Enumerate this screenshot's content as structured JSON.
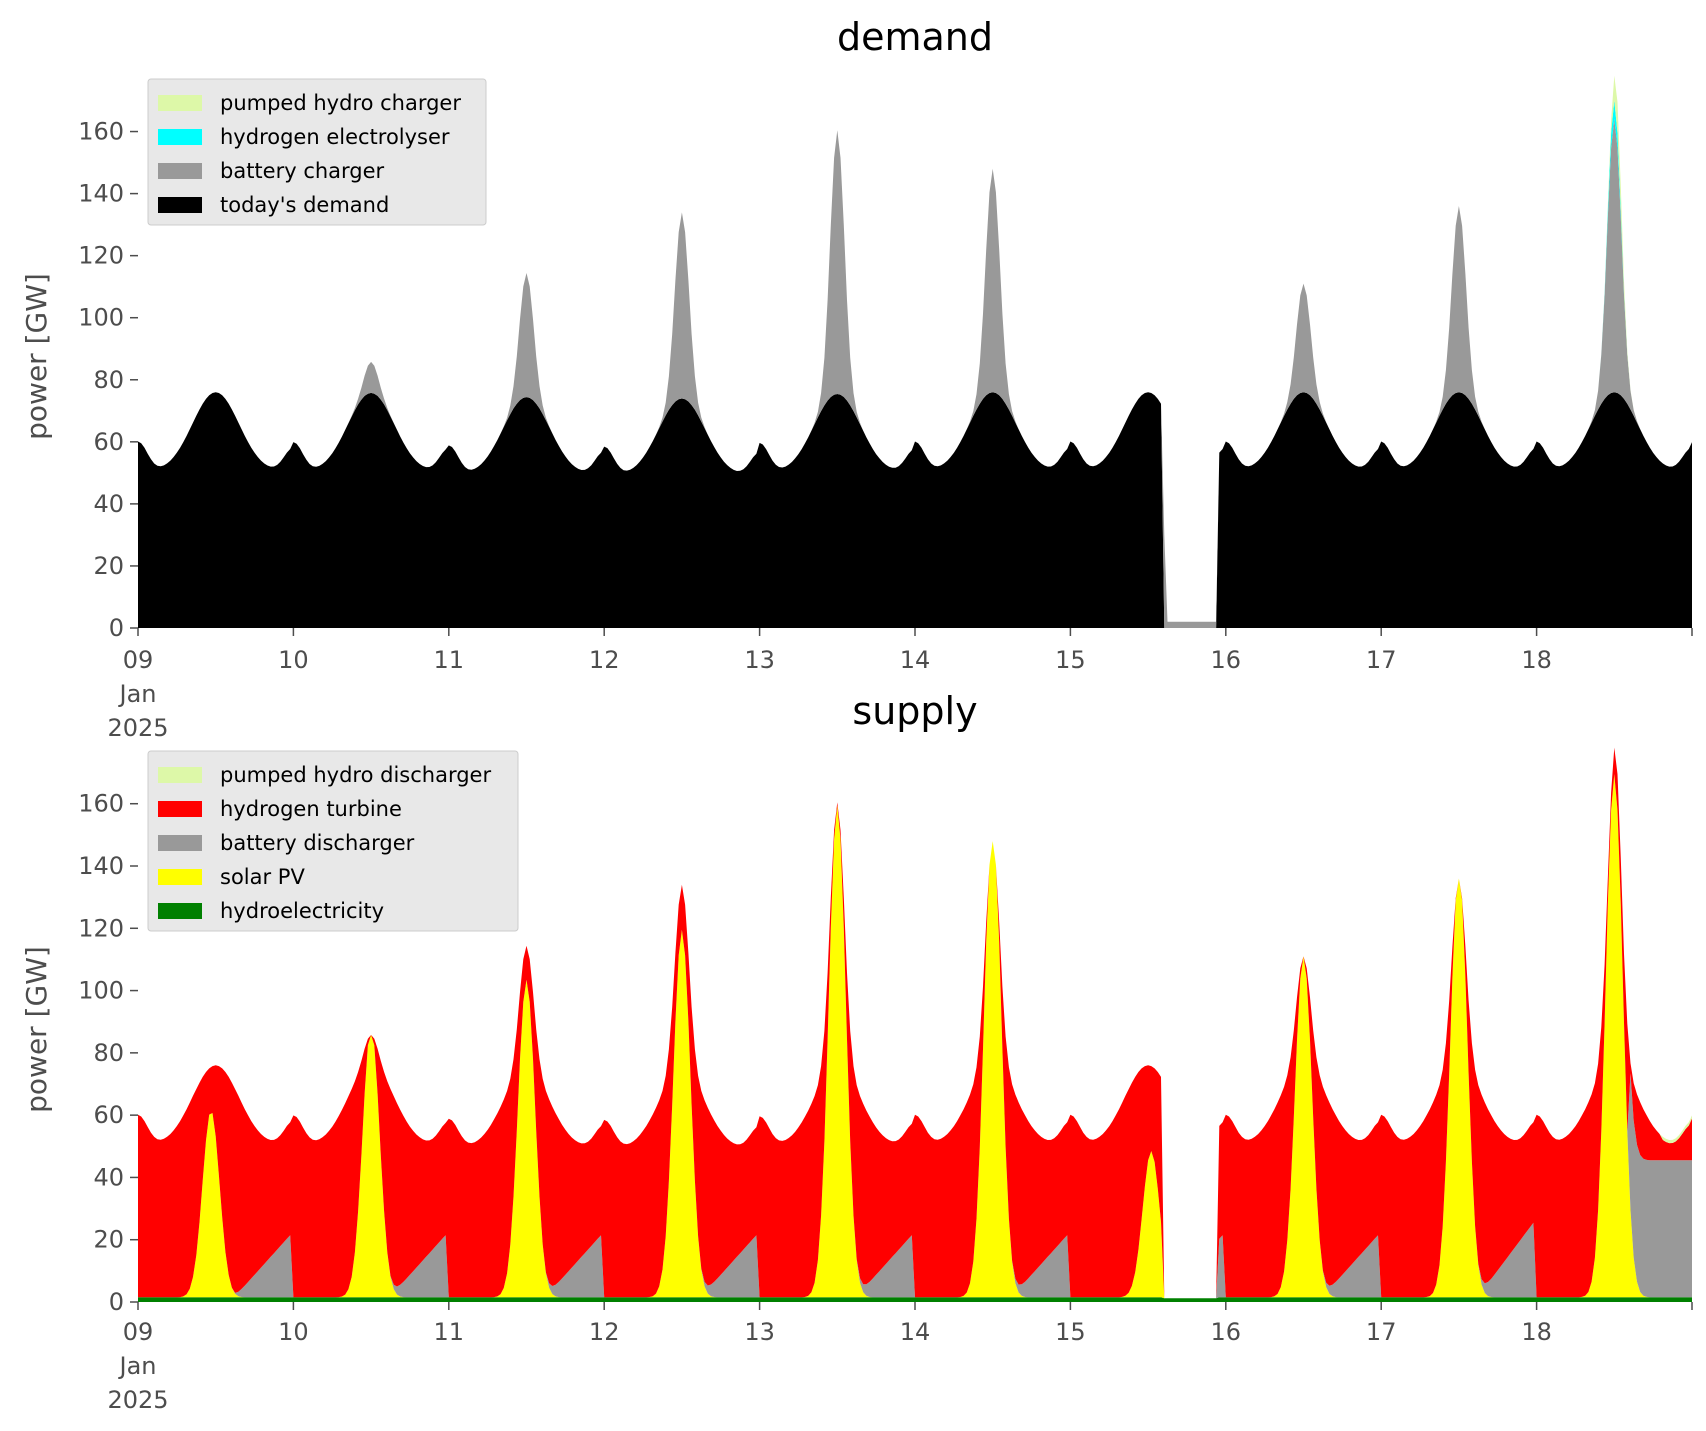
{
  "chart_data": [
    {
      "type": "area",
      "title": "demand",
      "ylabel": "power [GW]",
      "xlabel": "",
      "ylim": [
        0,
        175
      ],
      "yticks": [
        "0",
        "20",
        "40",
        "60",
        "80",
        "100",
        "120",
        "140",
        "160"
      ],
      "ytick_values": [
        0,
        20,
        40,
        60,
        80,
        100,
        120,
        140,
        160
      ],
      "x_tick_labels": [
        "09\nJan\n2025",
        "10",
        "11",
        "12",
        "13",
        "14",
        "15",
        "16",
        "17",
        "18"
      ],
      "x_tick_days": [
        9,
        10,
        11,
        12,
        13,
        14,
        15,
        16,
        17,
        18
      ],
      "x_range_days": [
        9,
        19
      ],
      "legend_position": "upper-left",
      "legend": [
        "pumped hydro charger",
        "hydrogen electrolyser",
        "battery charger",
        "today's demand"
      ],
      "series": [
        {
          "name": "today's demand",
          "color": "#000000"
        },
        {
          "name": "battery charger",
          "color": "#999999"
        },
        {
          "name": "hydrogen electrolyser",
          "color": "#00ffff"
        },
        {
          "name": "pumped hydro charger",
          "color": "#ddf8a8"
        }
      ],
      "grid": false
    },
    {
      "type": "area",
      "title": "supply",
      "ylabel": "power [GW]",
      "xlabel": "",
      "ylim": [
        0,
        175
      ],
      "yticks": [
        "0",
        "20",
        "40",
        "60",
        "80",
        "100",
        "120",
        "140",
        "160"
      ],
      "ytick_values": [
        0,
        20,
        40,
        60,
        80,
        100,
        120,
        140,
        160
      ],
      "x_tick_labels": [
        "09\nJan\n2025",
        "10",
        "11",
        "12",
        "13",
        "14",
        "15",
        "16",
        "17",
        "18"
      ],
      "x_tick_days": [
        9,
        10,
        11,
        12,
        13,
        14,
        15,
        16,
        17,
        18
      ],
      "x_range_days": [
        9,
        19
      ],
      "legend_position": "upper-left",
      "legend": [
        "pumped hydro discharger",
        "hydrogen turbine",
        "battery discharger",
        "solar PV",
        "hydroelectricity"
      ],
      "series": [
        {
          "name": "hydroelectricity",
          "color": "#008000"
        },
        {
          "name": "solar PV",
          "color": "#ffff00"
        },
        {
          "name": "battery discharger",
          "color": "#999999"
        },
        {
          "name": "hydrogen turbine",
          "color": "#ff0000"
        },
        {
          "name": "pumped hydro discharger",
          "color": "#ddf8a8"
        }
      ],
      "grid": false
    }
  ]
}
